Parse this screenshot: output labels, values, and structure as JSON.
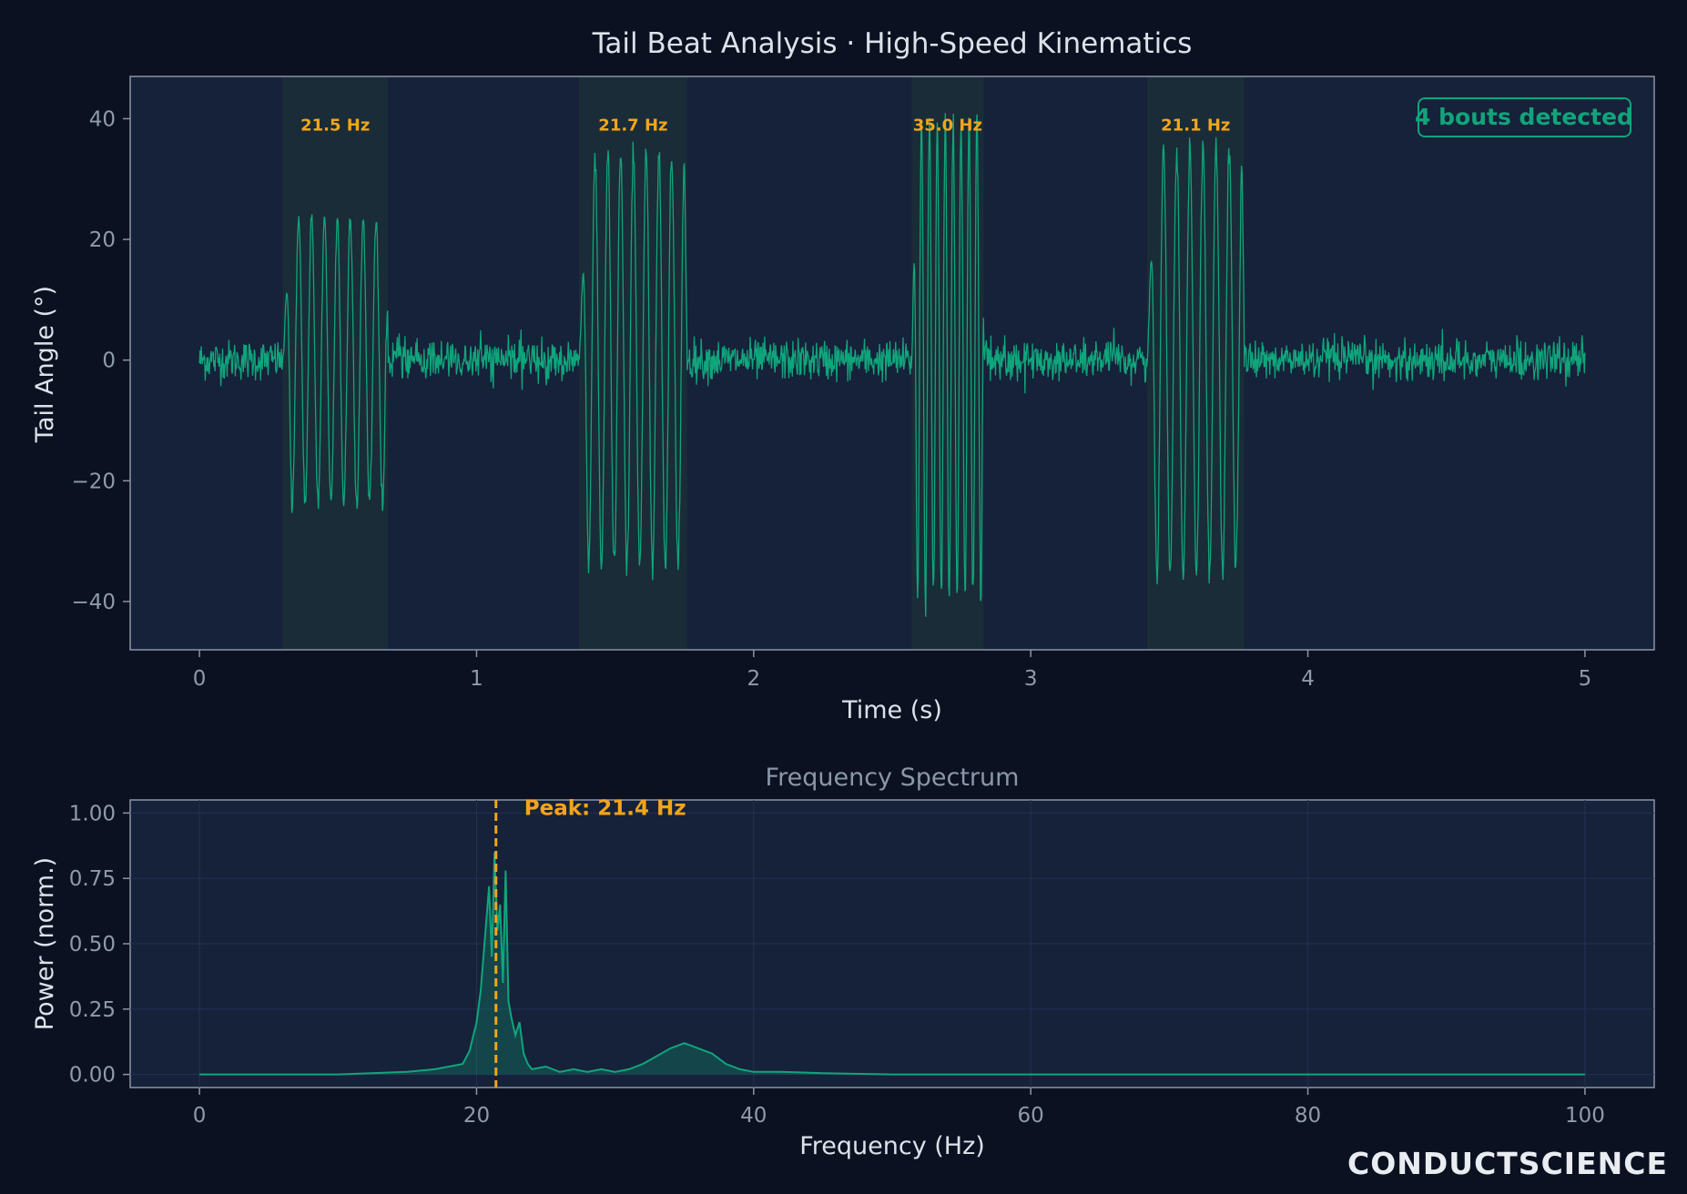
{
  "figure": {
    "title": "Tail Beat Analysis · High-Speed Kinematics",
    "brand": "CONDUCTSCIENCE"
  },
  "colors": {
    "background": "#0b1120",
    "panel": "#16213a",
    "signal": "#10a57b",
    "highlight": "#f2a51b",
    "bout_shade": "#1c3236",
    "text": "#dbe2ea",
    "tick_text": "#8f9aab"
  },
  "chart_data": [
    {
      "type": "line",
      "xlabel": "Time (s)",
      "ylabel": "Tail Angle (°)",
      "xlim": [
        -0.25,
        5.25
      ],
      "ylim": [
        -48,
        47
      ],
      "xticks": [
        "0",
        "1",
        "2",
        "3",
        "4",
        "5"
      ],
      "yticks": [
        "−40",
        "−20",
        "0",
        "20",
        "40"
      ],
      "grid": false,
      "badge": "4 bouts detected",
      "series": [
        {
          "time_range": [
            0,
            5
          ],
          "baseline_noise_deg": 3,
          "bouts": [
            {
              "start": 0.3,
              "end": 0.68,
              "freq_hz": 21.5,
              "amp_deg": 25,
              "label": "21.5 Hz"
            },
            {
              "start": 1.37,
              "end": 1.76,
              "freq_hz": 21.7,
              "amp_deg": 36,
              "label": "21.7 Hz"
            },
            {
              "start": 2.57,
              "end": 2.83,
              "freq_hz": 35.0,
              "amp_deg": 42,
              "label": "35.0 Hz"
            },
            {
              "start": 3.42,
              "end": 3.77,
              "freq_hz": 21.1,
              "amp_deg": 37,
              "label": "21.1 Hz"
            }
          ]
        }
      ]
    },
    {
      "type": "area",
      "title": "Frequency Spectrum",
      "xlabel": "Frequency (Hz)",
      "ylabel": "Power (norm.)",
      "xlim": [
        -5,
        105
      ],
      "ylim": [
        -0.05,
        1.05
      ],
      "xticks": [
        "0",
        "20",
        "40",
        "60",
        "80",
        "100"
      ],
      "yticks": [
        "0.00",
        "0.25",
        "0.50",
        "0.75",
        "1.00"
      ],
      "grid": true,
      "peak_hz": 21.4,
      "peak_label": "Peak: 21.4 Hz",
      "series": [
        {
          "x": [
            0,
            10,
            15,
            17,
            18,
            19,
            19.5,
            20,
            20.3,
            20.6,
            20.9,
            21.1,
            21.3,
            21.5,
            21.7,
            21.9,
            22.1,
            22.3,
            22.5,
            22.8,
            23.1,
            23.4,
            23.7,
            24,
            25,
            26,
            27,
            28,
            29,
            30,
            31,
            32,
            33,
            34,
            35,
            36,
            37,
            38,
            39,
            40,
            42,
            45,
            50,
            60,
            70,
            80,
            90,
            100
          ],
          "y": [
            0,
            0,
            0.01,
            0.02,
            0.03,
            0.04,
            0.09,
            0.2,
            0.32,
            0.52,
            0.72,
            0.45,
            0.85,
            0.55,
            0.65,
            0.35,
            0.78,
            0.28,
            0.22,
            0.15,
            0.2,
            0.08,
            0.04,
            0.02,
            0.03,
            0.01,
            0.02,
            0.01,
            0.02,
            0.01,
            0.02,
            0.04,
            0.07,
            0.1,
            0.12,
            0.1,
            0.08,
            0.04,
            0.02,
            0.01,
            0.01,
            0.005,
            0,
            0,
            0,
            0,
            0,
            0
          ]
        }
      ]
    }
  ]
}
